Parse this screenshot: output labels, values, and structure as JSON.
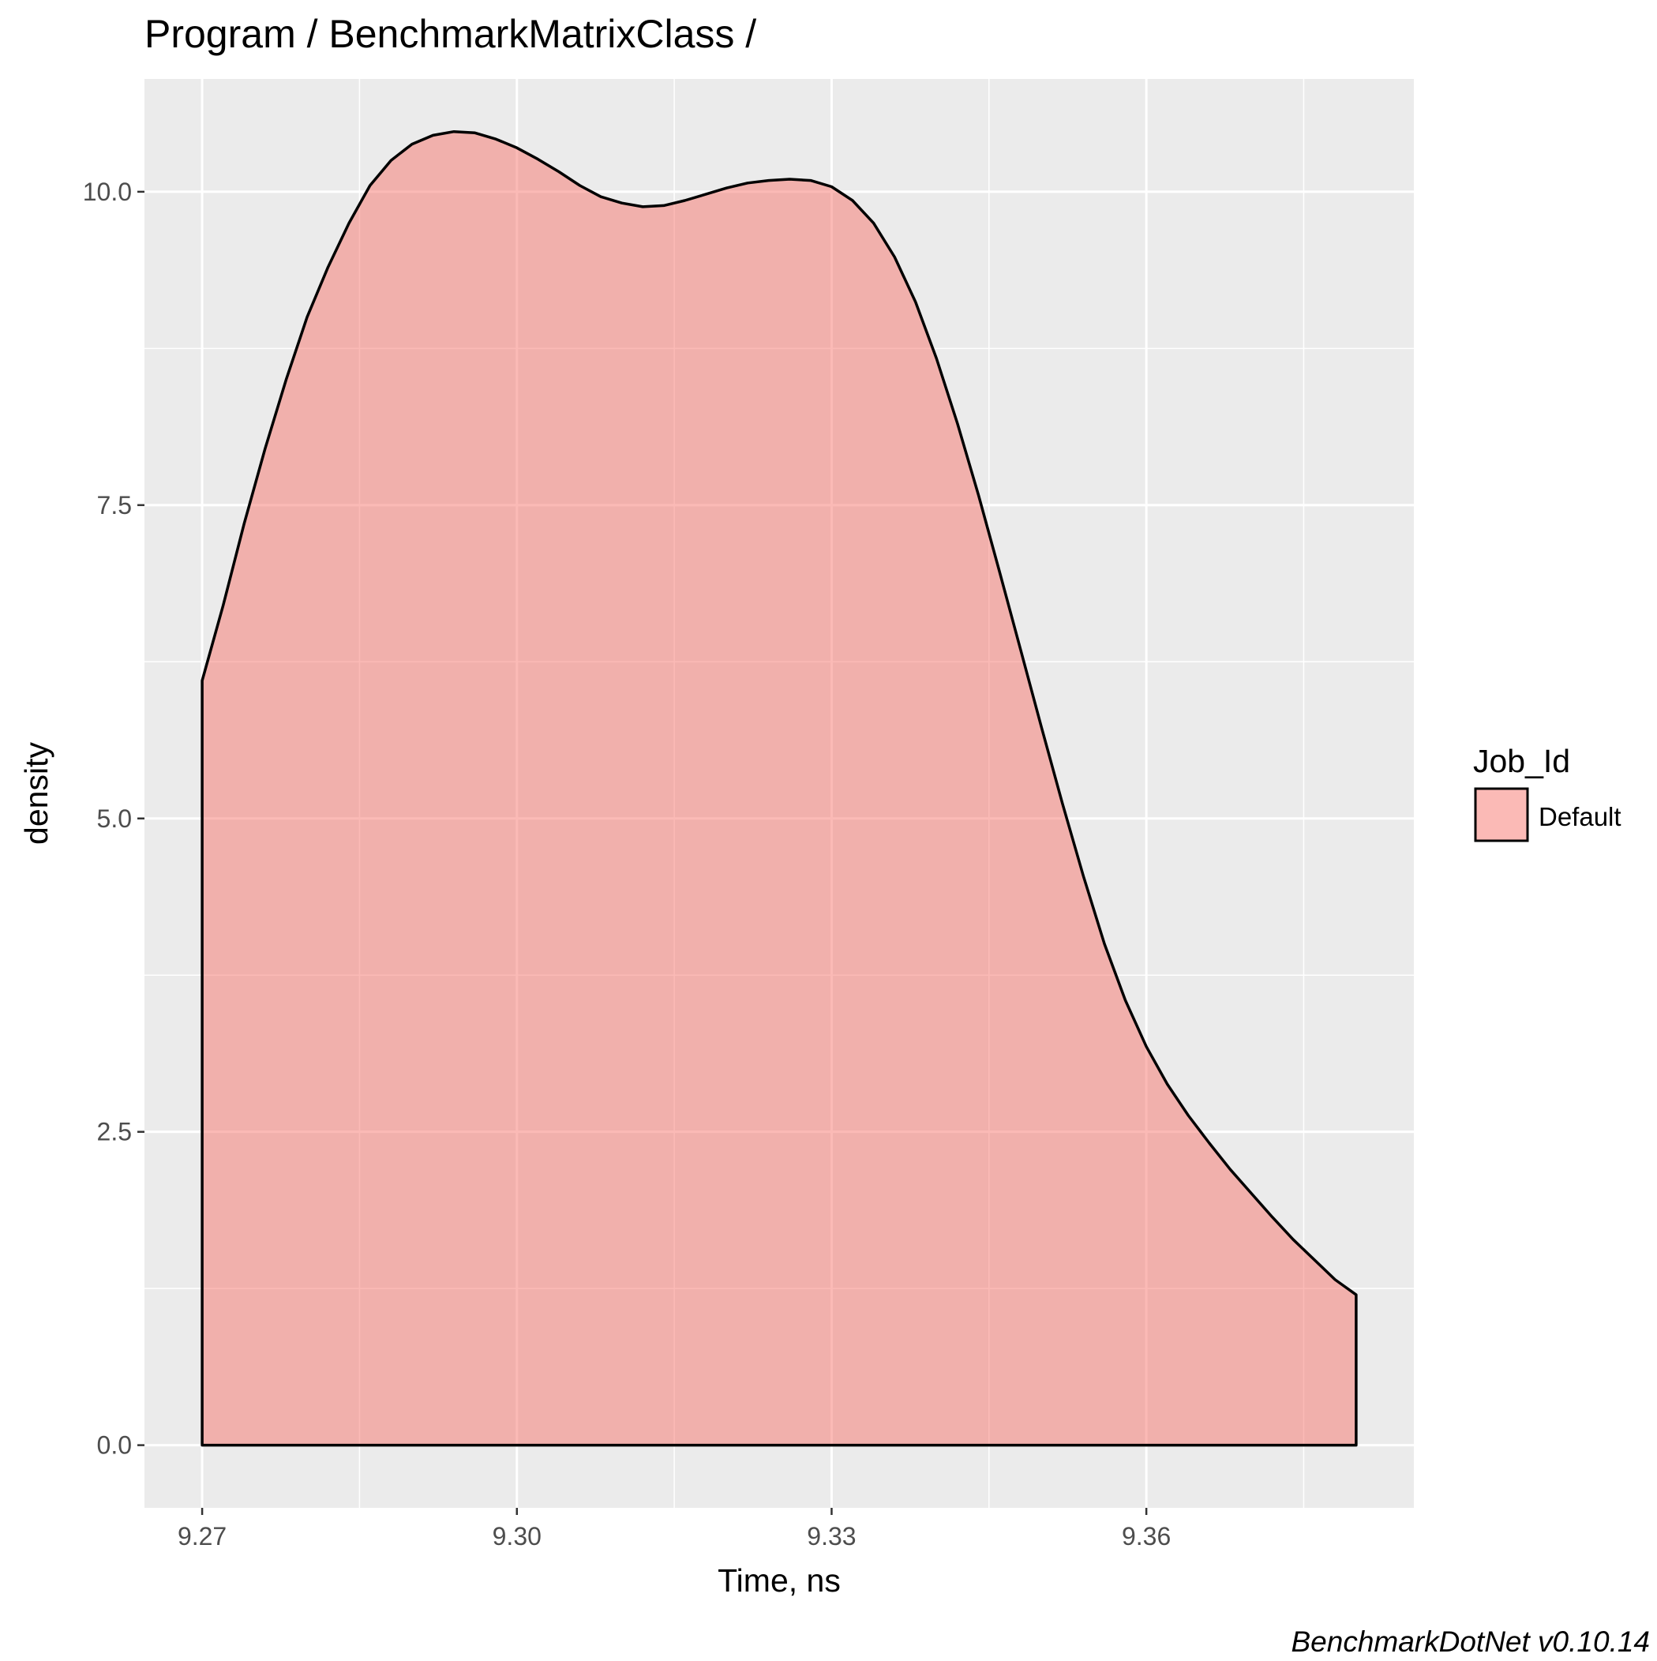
{
  "chart_data": {
    "type": "area",
    "title": "Program / BenchmarkMatrixClass /",
    "xlabel": "Time, ns",
    "ylabel": "density",
    "caption": "BenchmarkDotNet v0.10.14",
    "xlim": [
      9.2645,
      9.3855
    ],
    "ylim": [
      -0.5,
      9.8
    ],
    "x_ticks": [
      9.27,
      9.3,
      9.33,
      9.36
    ],
    "x_tick_labels": [
      "9.27",
      "9.30",
      "9.33",
      "9.36"
    ],
    "y_ticks": [
      0,
      2.5,
      5,
      7.5
    ],
    "y_tick_labels": [
      "0.0",
      "2.5",
      "5.0",
      "7.5"
    ],
    "top_tick_label": "10.0",
    "grid": true,
    "legend": {
      "title": "Job_Id",
      "position": "right"
    },
    "series": [
      {
        "name": "Default",
        "fill": "#F8766D",
        "fill_opacity": 0.5,
        "stroke": "#000000",
        "x": [
          9.27,
          9.272,
          9.274,
          9.276,
          9.278,
          9.28,
          9.282,
          9.284,
          9.286,
          9.288,
          9.29,
          9.292,
          9.294,
          9.296,
          9.298,
          9.3,
          9.302,
          9.304,
          9.306,
          9.308,
          9.31,
          9.312,
          9.314,
          9.316,
          9.318,
          9.32,
          9.322,
          9.324,
          9.326,
          9.328,
          9.33,
          9.332,
          9.334,
          9.336,
          9.338,
          9.34,
          9.342,
          9.344,
          9.346,
          9.348,
          9.35,
          9.352,
          9.354,
          9.356,
          9.358,
          9.36,
          9.362,
          9.364,
          9.366,
          9.368,
          9.37,
          9.372,
          9.374,
          9.376,
          9.378,
          9.38
        ],
        "y": [
          6.1,
          6.7,
          7.35,
          7.95,
          8.5,
          9.0,
          9.4,
          9.75,
          10.05,
          10.25,
          10.38,
          10.45,
          10.48,
          10.47,
          10.42,
          10.35,
          10.26,
          10.16,
          10.05,
          9.96,
          9.91,
          9.88,
          9.89,
          9.93,
          9.98,
          10.03,
          10.07,
          10.09,
          10.1,
          10.09,
          10.04,
          9.93,
          9.75,
          9.48,
          9.12,
          8.67,
          8.15,
          7.58,
          6.97,
          6.35,
          5.73,
          5.12,
          4.54,
          4.0,
          3.55,
          3.18,
          2.88,
          2.63,
          2.41,
          2.2,
          2.01,
          1.82,
          1.64,
          1.48,
          1.32,
          1.2
        ]
      }
    ]
  }
}
